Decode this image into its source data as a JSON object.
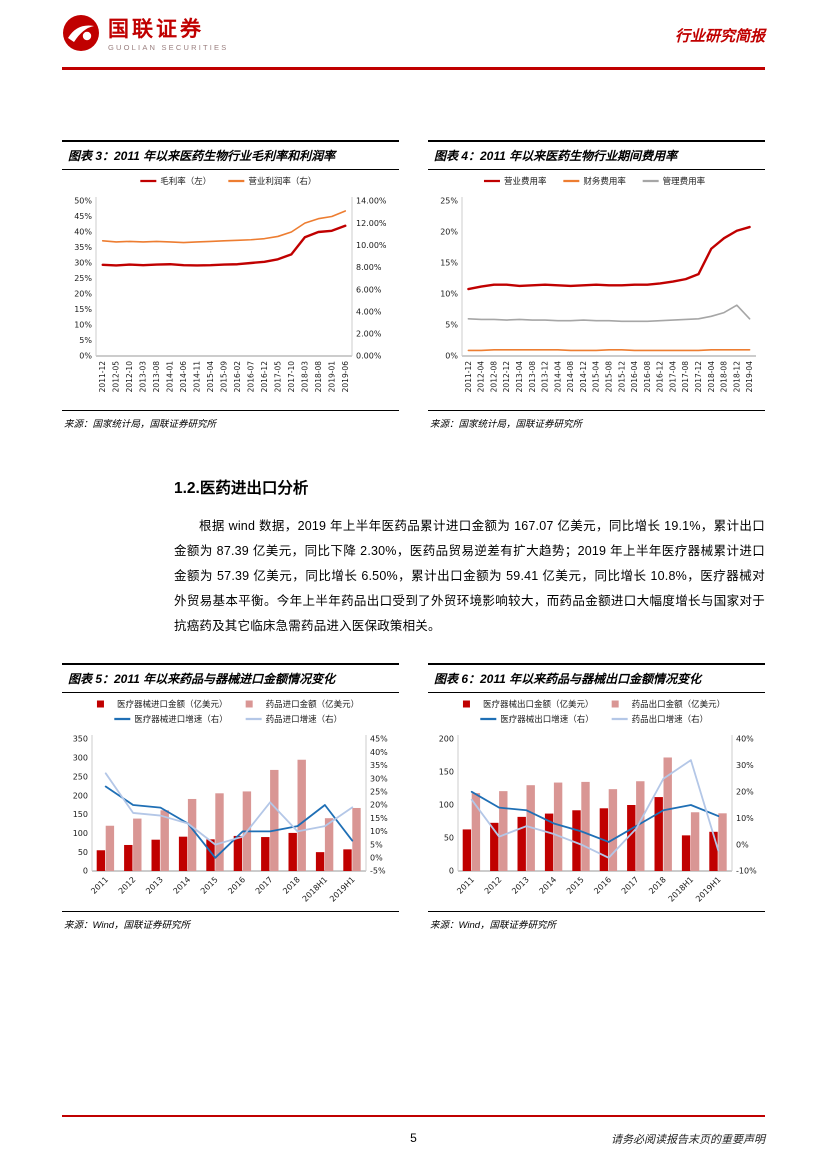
{
  "theme": {
    "accent_red": "#c00000",
    "bar_pink": "#d99694",
    "line_blue": "#1f6fb5",
    "line_lightblue": "#b4c7e7",
    "line_gray": "#a6a6a6",
    "line_orange": "#ed7d31"
  },
  "header": {
    "logo_title": "国联证券",
    "logo_subtitle": "GUOLIAN SECURITIES",
    "report_type": "行业研究简报"
  },
  "section": {
    "heading": "1.2.医药进出口分析",
    "paragraph": "根据 wind 数据，2019 年上半年医药品累计进口金额为 167.07 亿美元，同比增长 19.1%，累计出口金额为 87.39 亿美元，同比下降 2.30%，医药品贸易逆差有扩大趋势；2019 年上半年医疗器械累计进口金额为 57.39 亿美元，同比增长 6.50%，累计出口金额为 59.41 亿美元，同比增长 10.8%，医疗器械对外贸易基本平衡。今年上半年药品出口受到了外贸环境影响较大，而药品金额进口大幅度增长与国家对于抗癌药及其它临床急需药品进入医保政策相关。"
  },
  "footer": {
    "page_number": "5",
    "disclaimer": "请务必阅读报告末页的重要声明"
  },
  "chart_data": [
    {
      "type": "line",
      "title": "图表 3：2011 年以来医药生物行业毛利率和利润率",
      "source": "来源：国家统计局，国联证券研究所",
      "x_labels": [
        "2011-12",
        "2012-05",
        "2012-10",
        "2013-03",
        "2013-08",
        "2014-01",
        "2014-06",
        "2014-11",
        "2015-04",
        "2015-09",
        "2016-02",
        "2016-07",
        "2016-12",
        "2017-05",
        "2017-10",
        "2018-03",
        "2018-08",
        "2019-01",
        "2019-06"
      ],
      "x_rotate": 90,
      "left_axis": {
        "min": 0,
        "max": 50,
        "step": 5,
        "format": "pct0"
      },
      "right_axis": {
        "min": 0,
        "max": 14,
        "step": 2,
        "format": "pct2"
      },
      "series": [
        {
          "name": "毛利率（左）",
          "type": "line",
          "axis": "left",
          "color": "#c00000",
          "width": 2.4,
          "values": [
            29.4,
            29.2,
            29.5,
            29.3,
            29.5,
            29.6,
            29.3,
            29.2,
            29.3,
            29.5,
            29.6,
            30.0,
            30.4,
            31.2,
            32.8,
            38.3,
            40.0,
            40.4,
            42.0
          ]
        },
        {
          "name": "营业利润率（右）",
          "type": "line",
          "axis": "right",
          "color": "#ed7d31",
          "width": 1.6,
          "values": [
            10.4,
            10.3,
            10.35,
            10.3,
            10.35,
            10.3,
            10.25,
            10.3,
            10.35,
            10.4,
            10.45,
            10.5,
            10.6,
            10.8,
            11.2,
            12.0,
            12.4,
            12.6,
            13.1
          ]
        }
      ]
    },
    {
      "type": "line",
      "title": "图表 4：2011 年以来医药生物行业期间费用率",
      "source": "来源：国家统计局，国联证券研究所",
      "x_labels": [
        "2011-12",
        "2012-04",
        "2012-08",
        "2012-12",
        "2013-04",
        "2013-08",
        "2013-12",
        "2014-04",
        "2014-08",
        "2014-12",
        "2015-04",
        "2015-08",
        "2015-12",
        "2016-04",
        "2016-08",
        "2016-12",
        "2017-04",
        "2017-08",
        "2017-12",
        "2018-04",
        "2018-08",
        "2018-12",
        "2019-04"
      ],
      "x_rotate": 90,
      "left_axis": {
        "min": 0,
        "max": 25,
        "step": 5,
        "format": "pct0"
      },
      "series": [
        {
          "name": "营业费用率",
          "type": "line",
          "axis": "left",
          "color": "#c00000",
          "width": 2.4,
          "values": [
            10.8,
            11.2,
            11.5,
            11.5,
            11.3,
            11.4,
            11.5,
            11.4,
            11.3,
            11.4,
            11.5,
            11.4,
            11.4,
            11.5,
            11.5,
            11.7,
            12.0,
            12.4,
            13.2,
            17.3,
            19.0,
            20.2,
            20.8
          ]
        },
        {
          "name": "财务费用率",
          "type": "line",
          "axis": "left",
          "color": "#ed7d31",
          "width": 1.6,
          "values": [
            0.9,
            0.9,
            1.0,
            1.0,
            1.0,
            1.0,
            1.0,
            1.0,
            0.9,
            0.9,
            0.9,
            1.0,
            1.0,
            0.9,
            0.9,
            0.9,
            0.9,
            0.9,
            0.9,
            1.0,
            1.0,
            1.0,
            1.0
          ]
        },
        {
          "name": "管理费用率",
          "type": "line",
          "axis": "left",
          "color": "#a6a6a6",
          "width": 1.6,
          "values": [
            6.0,
            5.9,
            5.9,
            5.8,
            5.9,
            5.8,
            5.8,
            5.7,
            5.7,
            5.8,
            5.7,
            5.7,
            5.6,
            5.6,
            5.6,
            5.7,
            5.8,
            5.9,
            6.0,
            6.4,
            7.0,
            8.2,
            6.0
          ]
        }
      ]
    },
    {
      "type": "bar-line",
      "title": "图表 5：2011 年以来药品与器械进口金额情况变化",
      "source": "来源：Wind，国联证券研究所",
      "x_labels": [
        "2011",
        "2012",
        "2013",
        "2014",
        "2015",
        "2016",
        "2017",
        "2018",
        "2018H1",
        "2019H1"
      ],
      "x_rotate": 45,
      "left_axis": {
        "min": 0,
        "max": 350,
        "step": 50,
        "format": "int"
      },
      "right_axis": {
        "min": -5,
        "max": 45,
        "step": 5,
        "format": "pct0"
      },
      "series": [
        {
          "name": "医疗器械进口金额（亿美元）",
          "type": "bar",
          "axis": "left",
          "color": "#c00000",
          "values": [
            55,
            69,
            83,
            91,
            84,
            93,
            90,
            101,
            50,
            57.4
          ]
        },
        {
          "name": "药品进口金额（亿美元）",
          "type": "bar",
          "axis": "left",
          "color": "#d99694",
          "values": [
            120,
            139,
            161,
            191,
            206,
            211,
            268,
            295,
            140,
            167.1
          ]
        },
        {
          "name": "医疗器械进口增速（右）",
          "type": "line",
          "axis": "right",
          "color": "#1f6fb5",
          "width": 1.8,
          "values": [
            27,
            20,
            19,
            13,
            0,
            10,
            10,
            12,
            20,
            6.5
          ]
        },
        {
          "name": "药品进口增速（右）",
          "type": "line",
          "axis": "right",
          "color": "#b4c7e7",
          "width": 1.8,
          "values": [
            32,
            17,
            16,
            13,
            5,
            8,
            21,
            10,
            12,
            19.1
          ]
        }
      ]
    },
    {
      "type": "bar-line",
      "title": "图表 6：2011 年以来药品与器械出口金额情况变化",
      "source": "来源：Wind，国联证券研究所",
      "x_labels": [
        "2011",
        "2012",
        "2013",
        "2014",
        "2015",
        "2016",
        "2017",
        "2018",
        "2018H1",
        "2019H1"
      ],
      "x_rotate": 45,
      "left_axis": {
        "min": 0,
        "max": 200,
        "step": 50,
        "format": "int"
      },
      "right_axis": {
        "min": -10,
        "max": 40,
        "step": 10,
        "format": "pct0"
      },
      "series": [
        {
          "name": "医疗器械出口金额（亿美元）",
          "type": "bar",
          "axis": "left",
          "color": "#c00000",
          "values": [
            63,
            73,
            82,
            87,
            92,
            95,
            100,
            112,
            54,
            59.4
          ]
        },
        {
          "name": "药品出口金额（亿美元）",
          "type": "bar",
          "axis": "left",
          "color": "#d99694",
          "values": [
            118,
            121,
            130,
            134,
            135,
            124,
            136,
            172,
            89,
            87.4
          ]
        },
        {
          "name": "医疗器械出口增速（右）",
          "type": "line",
          "axis": "right",
          "color": "#1f6fb5",
          "width": 1.8,
          "values": [
            20,
            14,
            13,
            8,
            5,
            1,
            7,
            13,
            15,
            10.8
          ]
        },
        {
          "name": "药品出口增速（右）",
          "type": "line",
          "axis": "right",
          "color": "#b4c7e7",
          "width": 1.8,
          "values": [
            17,
            3,
            7,
            4,
            0,
            -5,
            6,
            25,
            32,
            -2.3
          ]
        }
      ]
    }
  ]
}
